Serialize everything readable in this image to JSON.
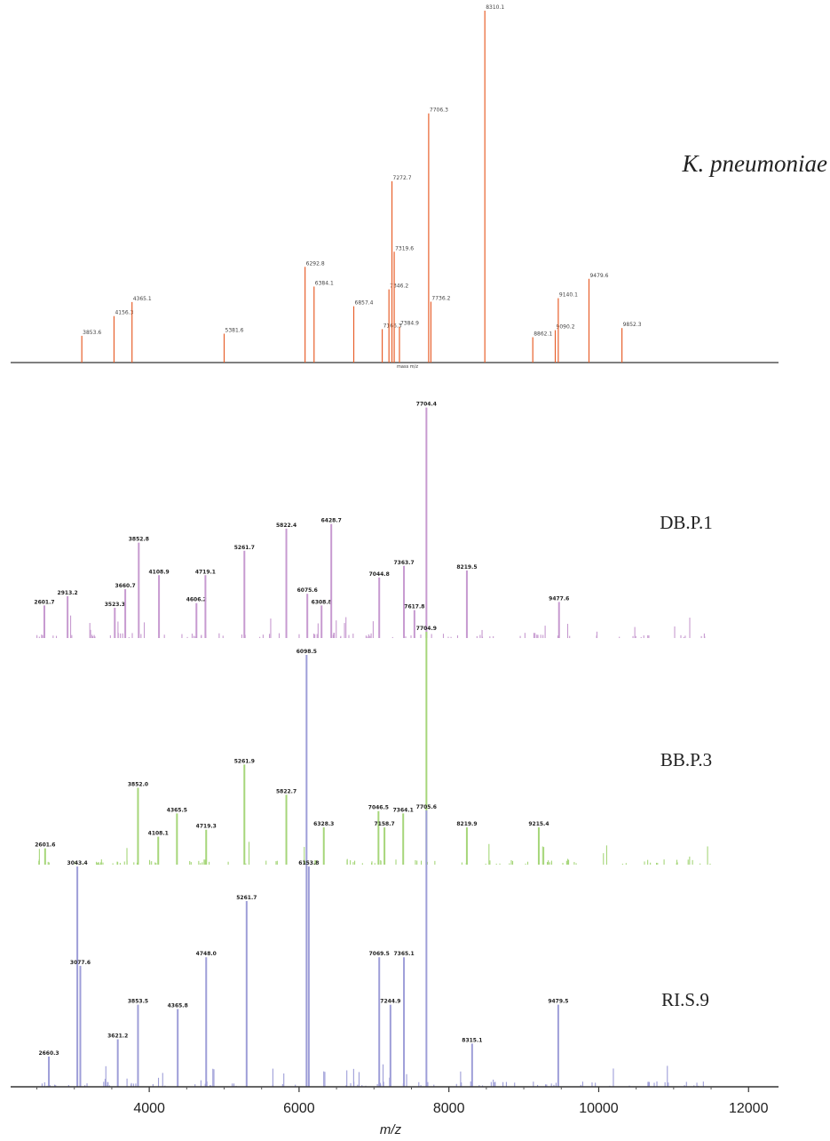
{
  "chart_data": [
    {
      "type": "bar",
      "title": "K. pneumoniae",
      "xlabel": "mass m/z",
      "color": "#e8602c",
      "peaks": [
        {
          "x": 3100,
          "h": 0.076,
          "label": "3853.6"
        },
        {
          "x": 3530,
          "h": 0.132,
          "label": "4156.3"
        },
        {
          "x": 3770,
          "h": 0.172,
          "label": "4365.1"
        },
        {
          "x": 5000,
          "h": 0.082,
          "label": "5381.6"
        },
        {
          "x": 6080,
          "h": 0.272,
          "label": "6292.8"
        },
        {
          "x": 6200,
          "h": 0.216,
          "label": "6384.1"
        },
        {
          "x": 6730,
          "h": 0.16,
          "label": "6857.4"
        },
        {
          "x": 7110,
          "h": 0.095,
          "label": "7166.3"
        },
        {
          "x": 7200,
          "h": 0.208,
          "label": "7346.2"
        },
        {
          "x": 7240,
          "h": 0.515,
          "label": "7272.7"
        },
        {
          "x": 7270,
          "h": 0.315,
          "label": "7319.6"
        },
        {
          "x": 7340,
          "h": 0.102,
          "label": "7384.9"
        },
        {
          "x": 7730,
          "h": 0.708,
          "label": "7706.3"
        },
        {
          "x": 7760,
          "h": 0.173,
          "label": "7736.2"
        },
        {
          "x": 8480,
          "h": 1.0,
          "label": "8310.1"
        },
        {
          "x": 9120,
          "h": 0.072,
          "label": "8862.1"
        },
        {
          "x": 9420,
          "h": 0.092,
          "label": "9090.2"
        },
        {
          "x": 9460,
          "h": 0.183,
          "label": "9140.1"
        },
        {
          "x": 9870,
          "h": 0.238,
          "label": "9479.6"
        },
        {
          "x": 10310,
          "h": 0.098,
          "label": "9852.3"
        }
      ]
    },
    {
      "type": "bar",
      "title": "DB.P.1",
      "color": "#c79ad0",
      "peaks": [
        {
          "x": 2600,
          "h": 0.14,
          "label": "2601.7"
        },
        {
          "x": 2910,
          "h": 0.18,
          "label": "2913.2"
        },
        {
          "x": 3540,
          "h": 0.13,
          "label": "3523.3"
        },
        {
          "x": 3680,
          "h": 0.21,
          "label": "3660.7"
        },
        {
          "x": 3860,
          "h": 0.41,
          "label": "3852.8"
        },
        {
          "x": 4130,
          "h": 0.27,
          "label": "4108.9"
        },
        {
          "x": 4630,
          "h": 0.15,
          "label": "4606.2"
        },
        {
          "x": 4750,
          "h": 0.27,
          "label": "4719.1"
        },
        {
          "x": 5270,
          "h": 0.375,
          "label": "5261.7"
        },
        {
          "x": 5830,
          "h": 0.47,
          "label": "5822.4"
        },
        {
          "x": 6110,
          "h": 0.19,
          "label": "6075.6"
        },
        {
          "x": 6300,
          "h": 0.14,
          "label": "6308.8"
        },
        {
          "x": 6430,
          "h": 0.49,
          "label": "6428.7"
        },
        {
          "x": 7070,
          "h": 0.26,
          "label": "7044.8"
        },
        {
          "x": 7400,
          "h": 0.31,
          "label": "7363.7"
        },
        {
          "x": 7540,
          "h": 0.12,
          "label": "7617.8"
        },
        {
          "x": 7700,
          "h": 0.99,
          "label": "7704.4"
        },
        {
          "x": 8240,
          "h": 0.29,
          "label": "8219.5"
        },
        {
          "x": 9470,
          "h": 0.155,
          "label": "9477.6"
        }
      ]
    },
    {
      "type": "bar",
      "title": "BB.P.3",
      "color": "#a6d67a",
      "peaks": [
        {
          "x": 2610,
          "h": 0.07,
          "label": "2601.6"
        },
        {
          "x": 3850,
          "h": 0.33,
          "label": "3852.0"
        },
        {
          "x": 4120,
          "h": 0.12,
          "label": "4108.1"
        },
        {
          "x": 4370,
          "h": 0.22,
          "label": "4365.5"
        },
        {
          "x": 4760,
          "h": 0.15,
          "label": "4719.3"
        },
        {
          "x": 5270,
          "h": 0.43,
          "label": "5261.9"
        },
        {
          "x": 5830,
          "h": 0.3,
          "label": "5822.7"
        },
        {
          "x": 6330,
          "h": 0.16,
          "label": "6328.3"
        },
        {
          "x": 7060,
          "h": 0.23,
          "label": "7046.5"
        },
        {
          "x": 7140,
          "h": 0.16,
          "label": "7158.7"
        },
        {
          "x": 7390,
          "h": 0.22,
          "label": "7364.1"
        },
        {
          "x": 7700,
          "h": 1.0,
          "label": "7704.9"
        },
        {
          "x": 8240,
          "h": 0.16,
          "label": "8219.9"
        },
        {
          "x": 9200,
          "h": 0.16,
          "label": "9215.4"
        }
      ]
    },
    {
      "type": "bar",
      "title": "RI.S.9",
      "xlabel": "m/z",
      "xlim": [
        2150,
        12400
      ],
      "xticks": [
        "4000",
        "6000",
        "8000",
        "10000",
        "12000"
      ],
      "color": "#9e9ed8",
      "peaks": [
        {
          "x": 2660,
          "h": 0.07,
          "label": "2660.3"
        },
        {
          "x": 3040,
          "h": 0.51,
          "label": "3043.4"
        },
        {
          "x": 3080,
          "h": 0.28,
          "label": "3077.6"
        },
        {
          "x": 3580,
          "h": 0.11,
          "label": "3621.2"
        },
        {
          "x": 3850,
          "h": 0.19,
          "label": "3853.5"
        },
        {
          "x": 4380,
          "h": 0.18,
          "label": "4365.8"
        },
        {
          "x": 4760,
          "h": 0.3,
          "label": "4748.0"
        },
        {
          "x": 5300,
          "h": 0.43,
          "label": "5261.7"
        },
        {
          "x": 6100,
          "h": 1.0,
          "label": "6098.5"
        },
        {
          "x": 6130,
          "h": 0.51,
          "label": "6153.8"
        },
        {
          "x": 7070,
          "h": 0.3,
          "label": "7069.5"
        },
        {
          "x": 7220,
          "h": 0.19,
          "label": "7244.9"
        },
        {
          "x": 7400,
          "h": 0.3,
          "label": "7365.1"
        },
        {
          "x": 7700,
          "h": 0.64,
          "label": "7705.6"
        },
        {
          "x": 8310,
          "h": 0.1,
          "label": "8315.1"
        },
        {
          "x": 9460,
          "h": 0.19,
          "label": "9479.5"
        }
      ]
    }
  ]
}
